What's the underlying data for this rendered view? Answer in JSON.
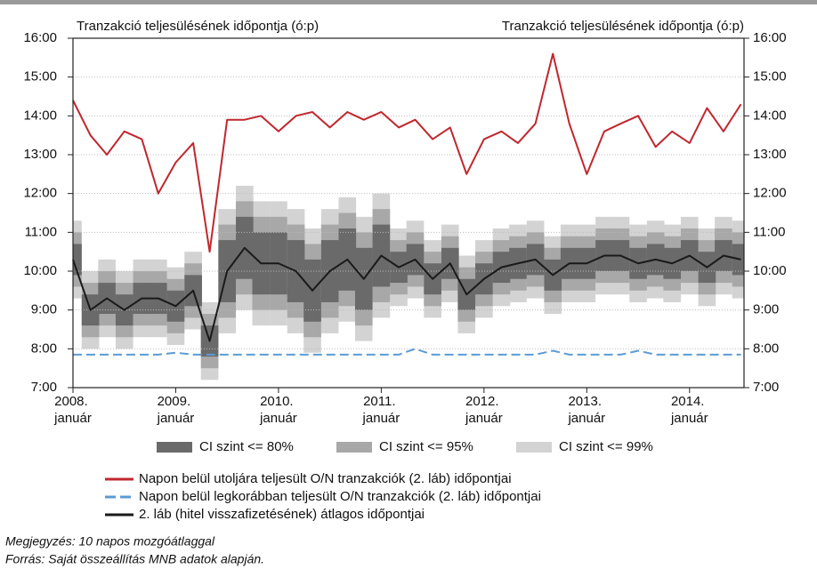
{
  "chart_data": {
    "type": "line",
    "axis_title_left": "Tranzakció teljesülésének időpontja (ó:p)",
    "axis_title_right": "Tranzakció teljesülésének időpontja (ó:p)",
    "x": [
      2008,
      2008.17,
      2008.33,
      2008.5,
      2008.67,
      2008.83,
      2009,
      2009.17,
      2009.33,
      2009.5,
      2009.67,
      2009.83,
      2010,
      2010.17,
      2010.33,
      2010.5,
      2010.67,
      2010.83,
      2011,
      2011.17,
      2011.33,
      2011.5,
      2011.67,
      2011.83,
      2012,
      2012.17,
      2012.33,
      2012.5,
      2012.67,
      2012.83,
      2013,
      2013.17,
      2013.33,
      2013.5,
      2013.67,
      2013.83,
      2014,
      2014.17,
      2014.33,
      2014.5
    ],
    "xlim": [
      2008,
      2014.53
    ],
    "xticks": [
      {
        "value": 2008,
        "label": "2008. január"
      },
      {
        "value": 2009,
        "label": "2009. január"
      },
      {
        "value": 2010,
        "label": "2010. január"
      },
      {
        "value": 2011,
        "label": "2011. január"
      },
      {
        "value": 2012,
        "label": "2012. január"
      },
      {
        "value": 2013,
        "label": "2013. január"
      },
      {
        "value": 2014,
        "label": "2014. január"
      }
    ],
    "ylim": [
      7,
      16
    ],
    "yticks": [
      {
        "value": 7,
        "label": "7:00"
      },
      {
        "value": 8,
        "label": "8:00"
      },
      {
        "value": 9,
        "label": "9:00"
      },
      {
        "value": 10,
        "label": "10:00"
      },
      {
        "value": 11,
        "label": "11:00"
      },
      {
        "value": 12,
        "label": "12:00"
      },
      {
        "value": 13,
        "label": "13:00"
      },
      {
        "value": 14,
        "label": "14:00"
      },
      {
        "value": 15,
        "label": "15:00"
      },
      {
        "value": 16,
        "label": "16:00"
      }
    ],
    "y2lim": [
      7,
      16
    ],
    "y2ticks": [
      {
        "value": 7,
        "label": "7:00"
      },
      {
        "value": 8,
        "label": "8:00"
      },
      {
        "value": 9,
        "label": "9:00"
      },
      {
        "value": 10,
        "label": "10:00"
      },
      {
        "value": 11,
        "label": "11:00"
      },
      {
        "value": 12,
        "label": "12:00"
      },
      {
        "value": 13,
        "label": "13:00"
      },
      {
        "value": 14,
        "label": "14:00"
      },
      {
        "value": 15,
        "label": "15:00"
      },
      {
        "value": 16,
        "label": "16:00"
      }
    ],
    "grid": true,
    "bands": [
      {
        "name": "CI szint <= 99%",
        "color": "#d3d3d3",
        "low": [
          9.3,
          8.0,
          8.3,
          8.0,
          8.3,
          8.3,
          8.1,
          8.5,
          7.2,
          8.4,
          9.0,
          8.6,
          8.6,
          8.4,
          7.9,
          8.4,
          8.7,
          8.2,
          8.8,
          9.1,
          9.3,
          8.8,
          9.2,
          8.4,
          8.8,
          9.1,
          9.2,
          9.3,
          8.9,
          9.2,
          9.2,
          9.4,
          9.4,
          9.2,
          9.3,
          9.2,
          9.4,
          9.1,
          9.4,
          9.3
        ],
        "high": [
          11.3,
          10.0,
          10.3,
          10.0,
          10.3,
          10.3,
          10.1,
          10.5,
          9.2,
          11.6,
          12.2,
          11.8,
          11.8,
          11.6,
          11.1,
          11.6,
          11.9,
          11.4,
          12.0,
          11.1,
          11.3,
          10.8,
          11.2,
          10.4,
          10.8,
          11.1,
          11.2,
          11.3,
          10.9,
          11.2,
          11.2,
          11.4,
          11.4,
          11.2,
          11.3,
          11.2,
          11.4,
          11.1,
          11.4,
          11.3
        ]
      },
      {
        "name": "CI szint <= 95%",
        "color": "#a8a8a8",
        "low": [
          9.6,
          8.3,
          8.6,
          8.3,
          8.6,
          8.6,
          8.4,
          8.8,
          7.5,
          8.8,
          9.4,
          9.0,
          9.0,
          8.8,
          8.3,
          8.8,
          9.1,
          8.6,
          9.2,
          9.4,
          9.6,
          9.1,
          9.5,
          8.7,
          9.1,
          9.4,
          9.5,
          9.6,
          9.2,
          9.5,
          9.5,
          9.7,
          9.7,
          9.5,
          9.6,
          9.5,
          9.7,
          9.4,
          9.7,
          9.6
        ],
        "high": [
          11.0,
          9.7,
          10.0,
          9.7,
          10.0,
          10.0,
          9.8,
          10.2,
          8.9,
          11.2,
          11.8,
          11.4,
          11.4,
          11.2,
          10.7,
          11.2,
          11.5,
          11.0,
          11.6,
          10.8,
          11.0,
          10.5,
          10.9,
          10.1,
          10.5,
          10.8,
          10.9,
          11.0,
          10.6,
          10.9,
          10.9,
          11.1,
          11.1,
          10.9,
          11.0,
          10.9,
          11.1,
          10.8,
          11.1,
          11.0
        ]
      },
      {
        "name": "CI szint <= 80%",
        "color": "#6a6a6a",
        "low": [
          9.9,
          8.6,
          8.9,
          8.6,
          8.9,
          8.9,
          8.7,
          9.1,
          7.8,
          9.2,
          9.8,
          9.4,
          9.4,
          9.2,
          8.7,
          9.2,
          9.5,
          9.0,
          9.6,
          9.7,
          9.9,
          9.4,
          9.8,
          9.0,
          9.4,
          9.7,
          9.8,
          9.9,
          9.5,
          9.8,
          9.8,
          10.0,
          10.0,
          9.8,
          9.9,
          9.8,
          10.0,
          9.7,
          10.0,
          9.9
        ],
        "high": [
          10.7,
          9.4,
          9.7,
          9.4,
          9.7,
          9.7,
          9.5,
          9.9,
          8.6,
          10.8,
          11.4,
          11.0,
          11.0,
          10.8,
          10.3,
          10.8,
          11.1,
          10.6,
          11.2,
          10.5,
          10.7,
          10.2,
          10.6,
          9.8,
          10.2,
          10.5,
          10.6,
          10.7,
          10.3,
          10.6,
          10.6,
          10.8,
          10.8,
          10.6,
          10.7,
          10.6,
          10.8,
          10.5,
          10.8,
          10.7
        ]
      }
    ],
    "series": [
      {
        "name": "Napon belül utoljára teljesült O/N tranzakciók (2. láb) időpontjai",
        "color": "#c0272d",
        "style": "solid",
        "values": [
          14.4,
          13.5,
          13.0,
          13.6,
          13.4,
          12.0,
          12.8,
          13.3,
          10.5,
          13.9,
          13.9,
          14.0,
          13.6,
          14.0,
          14.1,
          13.7,
          14.1,
          13.9,
          14.1,
          13.7,
          13.9,
          13.4,
          13.7,
          12.5,
          13.4,
          13.6,
          13.3,
          13.8,
          15.6,
          13.8,
          12.5,
          13.6,
          13.8,
          14.0,
          13.2,
          13.6,
          13.3,
          14.2,
          13.6,
          14.3
        ]
      },
      {
        "name": "Napon belül legkorábban teljesült O/N tranzakciók (2. láb) időpontjai",
        "color": "#5b9bd5",
        "style": "dashed",
        "values": [
          7.85,
          7.85,
          7.85,
          7.85,
          7.85,
          7.85,
          7.9,
          7.85,
          7.85,
          7.85,
          7.85,
          7.85,
          7.85,
          7.85,
          7.85,
          7.85,
          7.85,
          7.85,
          7.85,
          7.85,
          8.0,
          7.85,
          7.85,
          7.85,
          7.85,
          7.85,
          7.85,
          7.85,
          7.95,
          7.85,
          7.85,
          7.85,
          7.85,
          7.95,
          7.85,
          7.85,
          7.85,
          7.85,
          7.85,
          7.85
        ]
      },
      {
        "name": "2. láb (hitel visszafizetésének) átlagos időpontjai",
        "color": "#1a1a1a",
        "style": "solid",
        "values": [
          10.3,
          9.0,
          9.3,
          9.0,
          9.3,
          9.3,
          9.1,
          9.5,
          8.2,
          10.0,
          10.6,
          10.2,
          10.2,
          10.0,
          9.5,
          10.0,
          10.3,
          9.8,
          10.4,
          10.1,
          10.3,
          9.8,
          10.2,
          9.4,
          9.8,
          10.1,
          10.2,
          10.3,
          9.9,
          10.2,
          10.2,
          10.4,
          10.4,
          10.2,
          10.3,
          10.2,
          10.4,
          10.1,
          10.4,
          10.3
        ]
      }
    ],
    "note": "Megjegyzés: 10 napos mozgóátlaggal",
    "source": "Forrás: Saját összeállítás MNB adatok alapján."
  }
}
